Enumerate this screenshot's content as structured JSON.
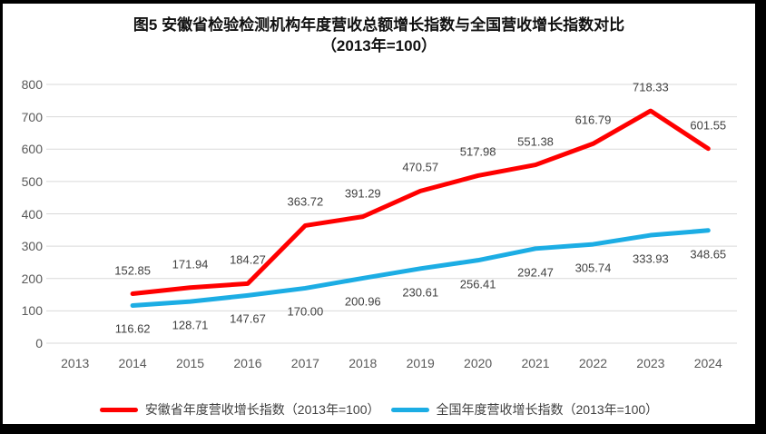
{
  "title": {
    "line1": "图5  安徽省检验检测机构年度营收总额增长指数与全国营收增长指数对比",
    "line2": "（2013年=100）"
  },
  "chart_data": {
    "type": "line",
    "title": "图5 安徽省检验检测机构年度营收总额增长指数与全国营收增长指数对比（2013年=100）",
    "categories": [
      "2013",
      "2014",
      "2015",
      "2016",
      "2017",
      "2018",
      "2019",
      "2020",
      "2021",
      "2022",
      "2023",
      "2024"
    ],
    "series": [
      {
        "name": "安徽省年度营收增长指数（2013年=100）",
        "color": "#FF0000",
        "label_position": "above",
        "values": [
          null,
          152.85,
          171.94,
          184.27,
          363.72,
          391.29,
          470.57,
          517.98,
          551.38,
          616.79,
          718.33,
          601.55
        ]
      },
      {
        "name": "全国年度营收增长指数（2013年=100）",
        "color": "#1CADE4",
        "label_position": "below",
        "values": [
          null,
          116.62,
          128.71,
          147.67,
          170.0,
          200.96,
          230.61,
          256.41,
          292.47,
          305.74,
          333.93,
          348.65
        ]
      }
    ],
    "ylim": [
      0,
      800
    ],
    "yticks": [
      0,
      100,
      200,
      300,
      400,
      500,
      600,
      700,
      800
    ],
    "grid": true,
    "grid_color": "#D9D9D9",
    "axis_text_color": "#595959",
    "data_label_color": "#404040",
    "data_labels_decimals": 2,
    "legend_position": "bottom"
  }
}
